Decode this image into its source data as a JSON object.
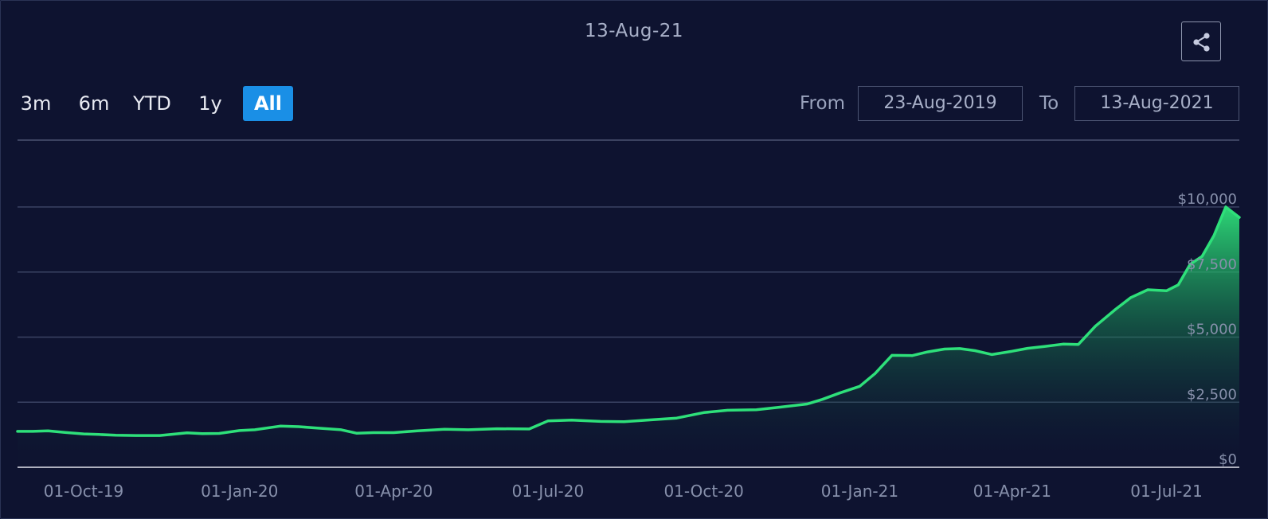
{
  "header": {
    "date_title": "13-Aug-21"
  },
  "range_selector": {
    "buttons": [
      "3m",
      "6m",
      "YTD",
      "1y",
      "All"
    ],
    "active": "All"
  },
  "date_range": {
    "from_label": "From",
    "from_value": "23-Aug-2019",
    "to_label": "To",
    "to_value": "13-Aug-2021"
  },
  "icons": {
    "share": "share-icon"
  },
  "colors": {
    "background": "#0e1330",
    "line": "#2ee07a",
    "active_button": "#1a8fe6",
    "grid": "#3a4363"
  },
  "chart_data": {
    "type": "area",
    "title": "",
    "xlabel": "",
    "ylabel": "",
    "ylim": [
      0,
      10000
    ],
    "grid": true,
    "x_range": [
      "2019-08-23",
      "2021-08-13"
    ],
    "y_ticks": [
      "$0",
      "$2,500",
      "$5,000",
      "$7,500",
      "$10,000"
    ],
    "x_ticks": [
      {
        "date": "2019-10-01",
        "label": "01-Oct-19"
      },
      {
        "date": "2020-01-01",
        "label": "01-Jan-20"
      },
      {
        "date": "2020-04-01",
        "label": "01-Apr-20"
      },
      {
        "date": "2020-07-01",
        "label": "01-Jul-20"
      },
      {
        "date": "2020-10-01",
        "label": "01-Oct-20"
      },
      {
        "date": "2021-01-01",
        "label": "01-Jan-21"
      },
      {
        "date": "2021-04-01",
        "label": "01-Apr-21"
      },
      {
        "date": "2021-07-01",
        "label": "01-Jul-21"
      }
    ],
    "series": [
      {
        "x": [
          "2019-08-23",
          "2019-09-01",
          "2019-09-10",
          "2019-09-20",
          "2019-10-01",
          "2019-10-10",
          "2019-10-20",
          "2019-11-01",
          "2019-11-15",
          "2019-12-01",
          "2019-12-10",
          "2019-12-20",
          "2020-01-01",
          "2020-01-10",
          "2020-01-25",
          "2020-02-05",
          "2020-02-15",
          "2020-03-01",
          "2020-03-10",
          "2020-03-20",
          "2020-04-01",
          "2020-04-15",
          "2020-05-01",
          "2020-05-15",
          "2020-06-01",
          "2020-06-20",
          "2020-07-01",
          "2020-07-15",
          "2020-08-01",
          "2020-08-15",
          "2020-09-01",
          "2020-09-15",
          "2020-10-01",
          "2020-10-15",
          "2020-11-01",
          "2020-11-15",
          "2020-12-01",
          "2020-12-10",
          "2020-12-20",
          "2021-01-01",
          "2021-01-10",
          "2021-01-20",
          "2021-02-01",
          "2021-02-10",
          "2021-02-20",
          "2021-03-01",
          "2021-03-10",
          "2021-03-20",
          "2021-04-01",
          "2021-04-10",
          "2021-04-20",
          "2021-05-01",
          "2021-05-10",
          "2021-05-20",
          "2021-06-01",
          "2021-06-10",
          "2021-06-20",
          "2021-07-01",
          "2021-07-08",
          "2021-07-15",
          "2021-07-22",
          "2021-07-29",
          "2021-08-05",
          "2021-08-13"
        ],
        "y": [
          1380,
          1380,
          1400,
          1340,
          1280,
          1260,
          1230,
          1220,
          1220,
          1320,
          1290,
          1300,
          1410,
          1440,
          1580,
          1560,
          1510,
          1440,
          1310,
          1330,
          1330,
          1400,
          1460,
          1440,
          1480,
          1470,
          1780,
          1810,
          1760,
          1750,
          1830,
          1890,
          2100,
          2190,
          2210,
          2310,
          2430,
          2610,
          2850,
          3110,
          3600,
          4300,
          4290,
          4430,
          4540,
          4560,
          4480,
          4330,
          4460,
          4570,
          4640,
          4730,
          4720,
          5420,
          6070,
          6520,
          6820,
          6780,
          7010,
          7800,
          8100,
          8900,
          10000,
          9600
        ]
      }
    ]
  }
}
